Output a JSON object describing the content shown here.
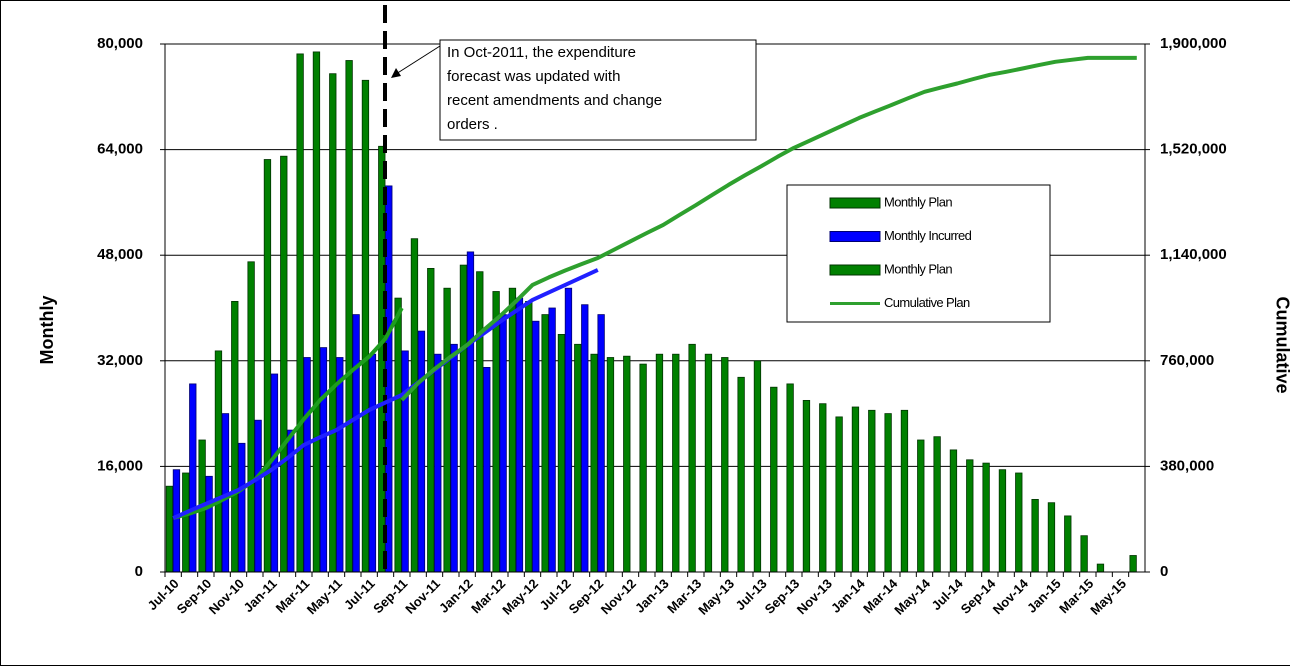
{
  "chart_data": {
    "type": "bar",
    "y_label": "Monthly",
    "y2_label": "Cumulative",
    "annotation": [
      "In Oct-2011, the expenditure",
      "forecast was updated with",
      "recent amendments and change",
      "orders ."
    ],
    "categories": [
      "Jul-10",
      null,
      "Sep-10",
      null,
      "Nov-10",
      null,
      "Jan-11",
      null,
      "Mar-11",
      null,
      "May-11",
      null,
      "Jul-11",
      null,
      "Sep-11",
      null,
      "Nov-11",
      null,
      "Jan-12",
      null,
      "Mar-12",
      null,
      "May-12",
      null,
      "Jul-12",
      null,
      "Sep-12",
      null,
      "Nov-12",
      null,
      "Jan-13",
      null,
      "Mar-13",
      null,
      "May-13",
      null,
      "Jul-13",
      null,
      "Sep-13",
      null,
      "Nov-13",
      null,
      "Jan-14",
      null,
      "Mar-14",
      null,
      "May-14",
      null,
      "Jul-14",
      null,
      "Sep-14",
      null,
      "Nov-14",
      null,
      "Jan-15",
      null,
      "Mar-15",
      null,
      "May-15",
      null
    ],
    "ylim": [
      0,
      80000
    ],
    "yticks": [
      0,
      {
        "value": 16000,
        "label": "16,000"
      },
      {
        "value": 32000,
        "label": "32,000"
      },
      {
        "value": 48000,
        "label": "48,000"
      },
      {
        "value": 64000,
        "label": "64,000"
      },
      {
        "value": 80000,
        "label": "80,000"
      }
    ],
    "y2lim": [
      0,
      1900000
    ],
    "y2ticks": [
      0,
      {
        "value": 380000,
        "label": "380,000"
      },
      {
        "value": 760000,
        "label": "760,000"
      },
      {
        "value": 1140000,
        "label": "1,140,000"
      },
      {
        "value": 1520000,
        "label": "1,520,000"
      },
      {
        "value": 1900000,
        "label": "1,900,000"
      }
    ],
    "grid": true,
    "legend": "right",
    "series": [
      {
        "name": "Monthly Plan",
        "kind": "bar",
        "color": "#008000",
        "values": [
          13000,
          15000,
          20000,
          33500,
          41000,
          47000,
          62500,
          63000,
          78500,
          78800,
          75500,
          77500,
          74500,
          64500,
          41500,
          50500,
          46000,
          43000,
          46500,
          45500,
          42500,
          43000,
          41000,
          39000,
          36000,
          34500,
          33000,
          32500,
          32700,
          31500,
          33000,
          33000,
          34500,
          33000,
          32500,
          29500,
          32000,
          28000,
          28500,
          26000,
          25500,
          23500,
          25000,
          24500,
          24000,
          24500,
          20000,
          20500,
          18500,
          17000,
          16500,
          15500,
          15000,
          11000,
          10500,
          8500,
          5500,
          1200,
          0,
          2500
        ]
      },
      {
        "name": "Monthly Incurred",
        "kind": "bar",
        "color": "#0000ff",
        "values": [
          15500,
          28500,
          14500,
          24000,
          19500,
          23000,
          30000,
          21500,
          32500,
          34000,
          32500,
          39000,
          33000,
          58500,
          33500,
          36500,
          33000,
          34500,
          48500,
          31000,
          39000,
          41500,
          38000,
          40000,
          43000,
          40500,
          39000,
          null,
          null,
          null,
          null,
          null,
          null,
          null,
          null,
          null,
          null,
          null,
          null,
          null,
          null,
          null,
          null,
          null,
          null,
          null,
          null,
          null,
          null,
          null,
          null,
          null,
          null,
          null,
          null,
          null,
          null,
          null,
          null,
          null
        ]
      },
      {
        "name": "Monthly Plan",
        "kind": "line",
        "axis": "y2",
        "legend_marker": "bar",
        "color": "#1e9e1e",
        "values": [
          194000,
          210000,
          230000,
          259000,
          290000,
          331000,
          400000,
          475000,
          550000,
          619000,
          675000,
          727000,
          775000,
          840000,
          950000,
          null,
          null,
          null,
          null,
          null,
          null,
          null,
          null,
          null,
          null,
          null,
          null,
          null,
          null,
          null,
          null,
          null,
          null,
          null,
          null,
          null,
          null,
          null,
          null,
          null,
          null,
          null,
          null,
          null,
          null,
          null,
          null,
          null,
          null,
          null,
          null,
          null,
          null,
          null,
          null,
          null,
          null,
          null,
          null,
          null
        ]
      },
      {
        "kind": "line",
        "axis": "y2",
        "color": "#2020ff",
        "values": [
          194000,
          220000,
          245000,
          270000,
          295000,
          330000,
          367000,
          410000,
          457000,
          485000,
          511000,
          547000,
          583000,
          610000,
          637000,
          682000,
          727000,
          772000,
          817000,
          858000,
          900000,
          940000,
          979000,
          1006000,
          1033000,
          1060000,
          1087000,
          null,
          null,
          null,
          null,
          null,
          null,
          null,
          null,
          null,
          null,
          null,
          null,
          null,
          null,
          null,
          null,
          null,
          null,
          null,
          null,
          null,
          null,
          null,
          null,
          null,
          null,
          null,
          null,
          null,
          null,
          null,
          null,
          null
        ]
      },
      {
        "name": "Cumulative Plan",
        "kind": "line",
        "axis": "y2",
        "color": "#2ea02e",
        "values": [
          null,
          null,
          null,
          null,
          null,
          null,
          null,
          null,
          null,
          null,
          null,
          null,
          null,
          null,
          619000,
          680000,
          730000,
          775000,
          817000,
          870000,
          920000,
          975000,
          1033000,
          1060000,
          1085000,
          1108000,
          1130000,
          1160000,
          1190000,
          1220000,
          1249000,
          1285000,
          1320000,
          1357000,
          1393000,
          1427000,
          1460000,
          1494000,
          1526000,
          1553000,
          1580000,
          1607000,
          1634000,
          1658000,
          1681000,
          1705000,
          1728000,
          1743000,
          1758000,
          1774000,
          1789000,
          1800000,
          1812000,
          1824000,
          1836000,
          1843000,
          1850000,
          1850000,
          1850000,
          1850000
        ]
      }
    ]
  }
}
